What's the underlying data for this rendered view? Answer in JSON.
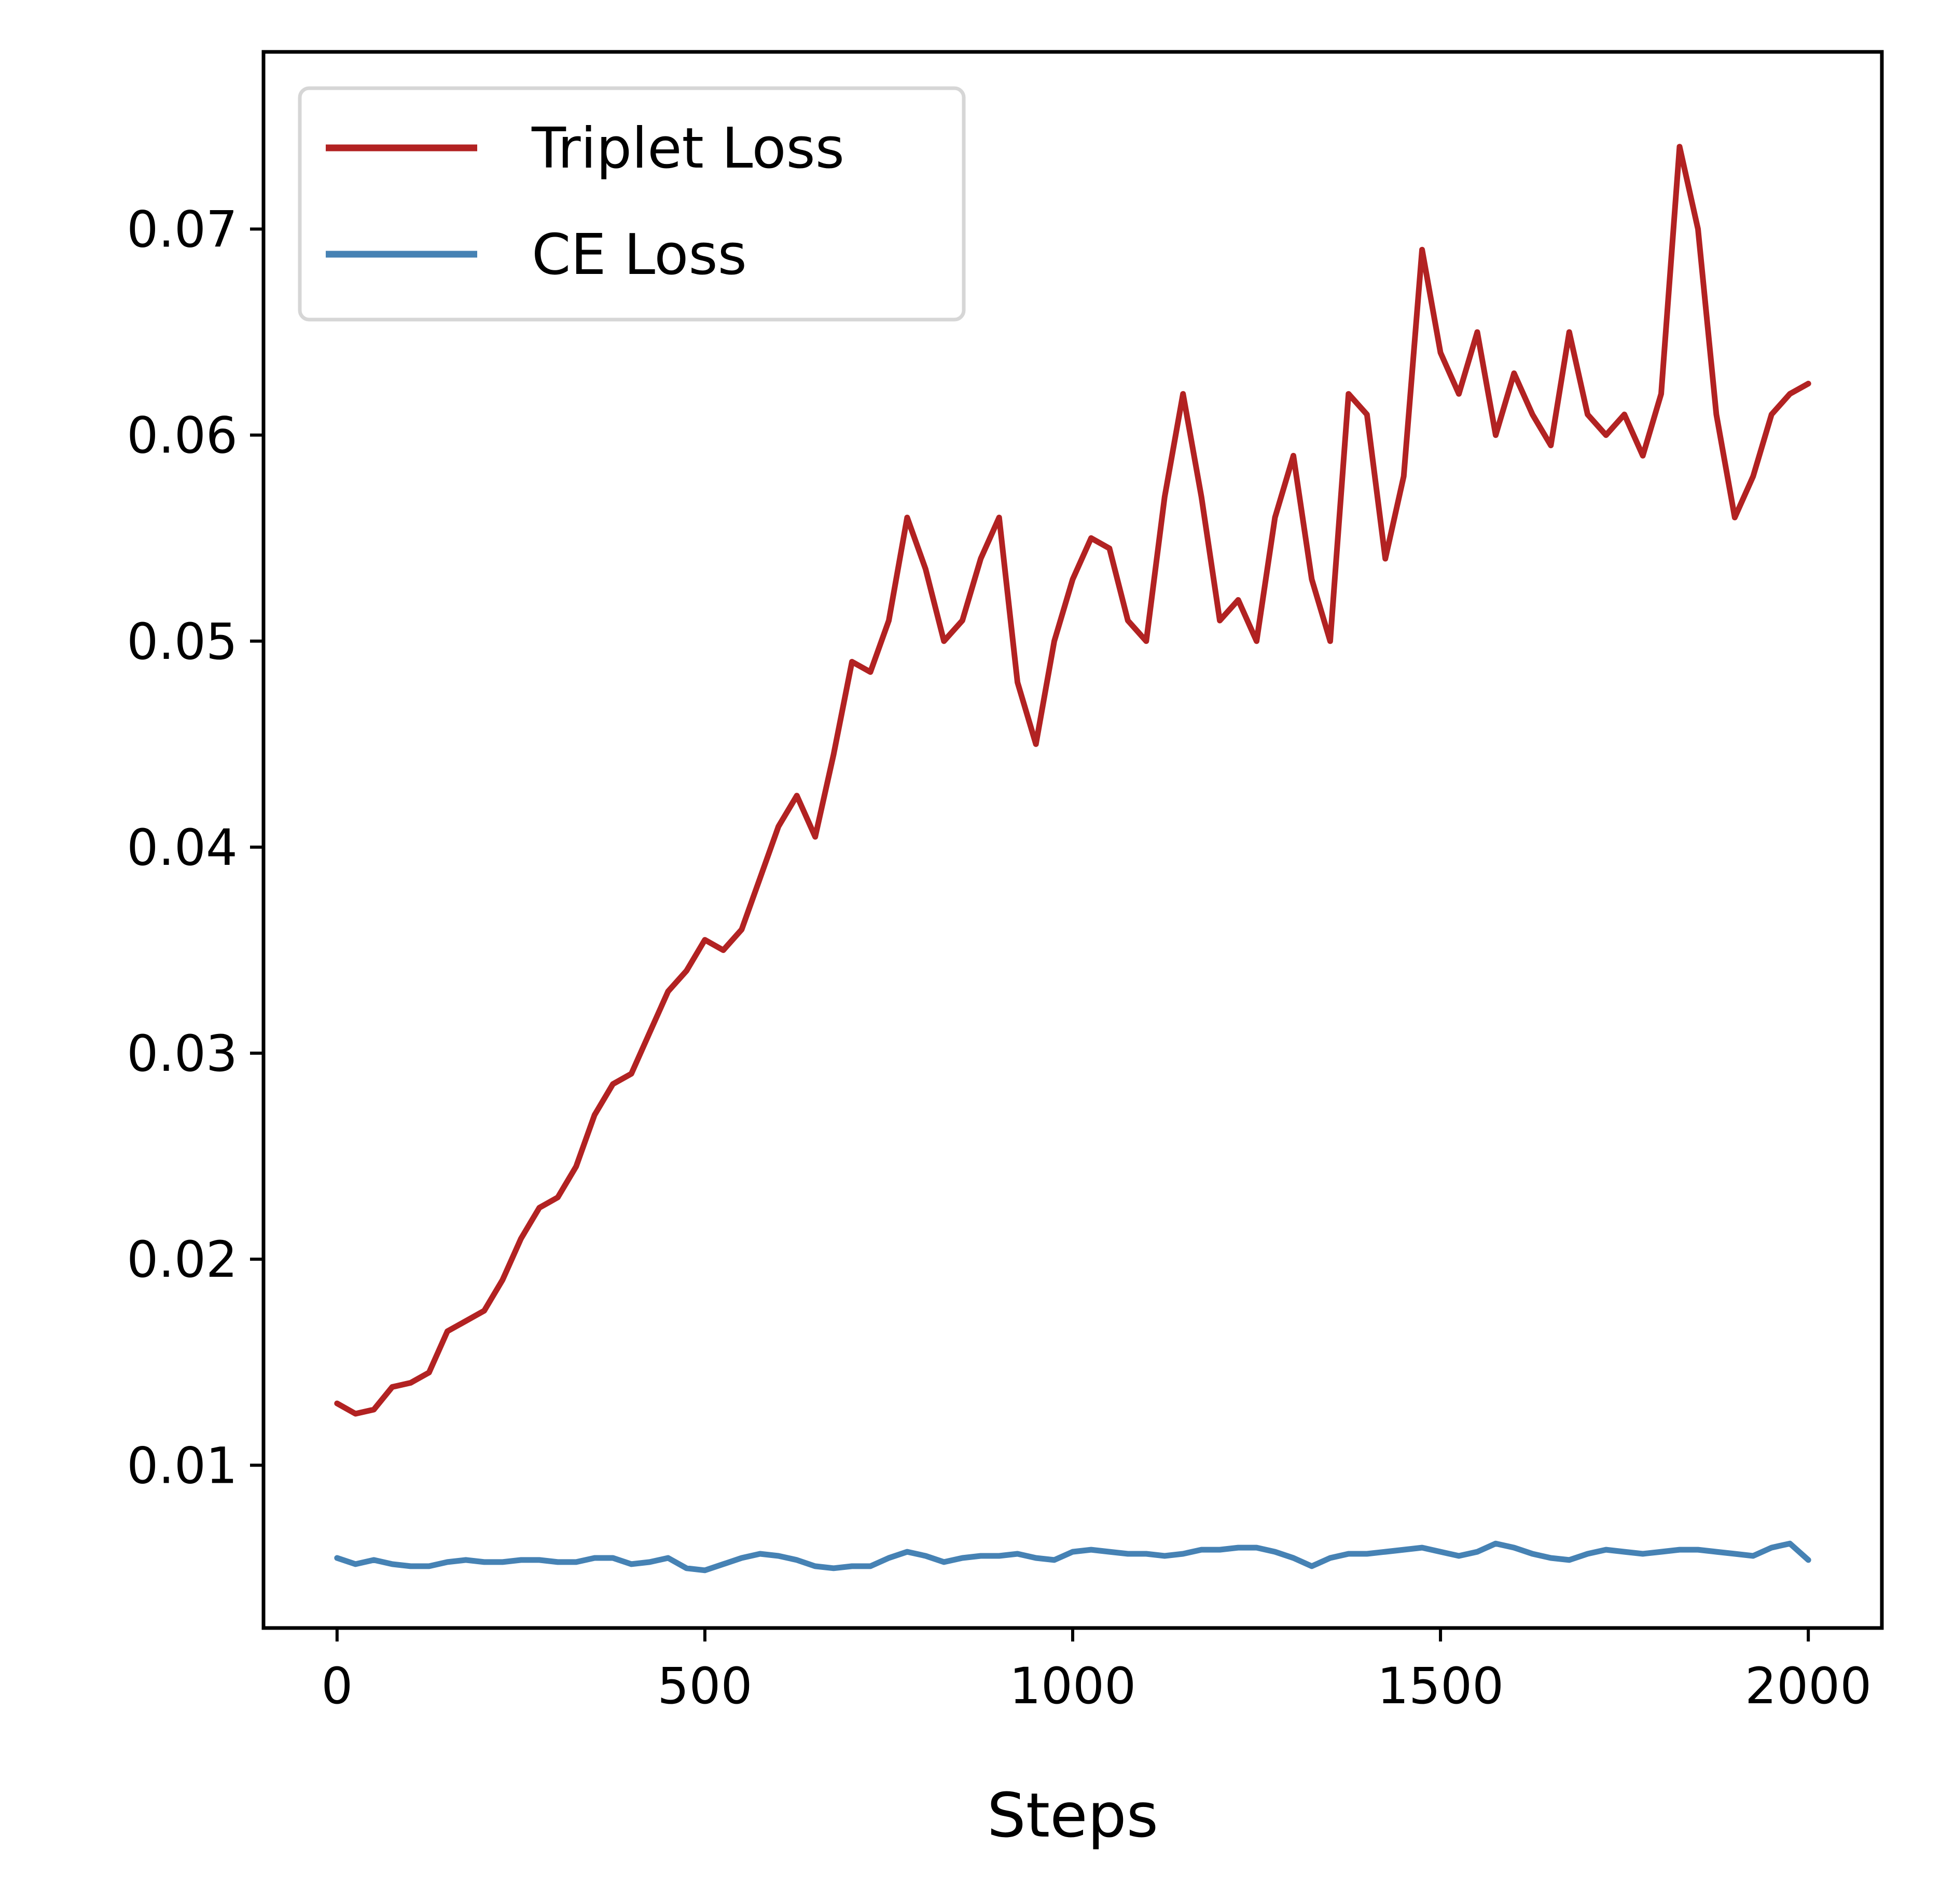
{
  "chart_data": {
    "type": "line",
    "title": "",
    "xlabel": "Steps",
    "ylabel": "",
    "xlim": [
      -100,
      2100
    ],
    "ylim": [
      0.0021,
      0.0786
    ],
    "xticks": [
      0,
      500,
      1000,
      1500,
      2000
    ],
    "xtick_labels": [
      "0",
      "500",
      "1000",
      "1500",
      "2000"
    ],
    "yticks": [
      0.01,
      0.02,
      0.03,
      0.04,
      0.05,
      0.06,
      0.07
    ],
    "ytick_labels": [
      "0.01",
      "0.02",
      "0.03",
      "0.04",
      "0.05",
      "0.06",
      "0.07"
    ],
    "grid": false,
    "legend": {
      "position": "top-left",
      "entries": [
        "Triplet Loss",
        "CE Loss"
      ]
    },
    "series": [
      {
        "name": "Triplet Loss",
        "color": "#b22222",
        "x": [
          0,
          25,
          50,
          75,
          100,
          125,
          150,
          175,
          200,
          225,
          250,
          275,
          300,
          325,
          350,
          375,
          400,
          425,
          450,
          475,
          500,
          525,
          550,
          575,
          600,
          625,
          650,
          675,
          700,
          725,
          750,
          775,
          800,
          825,
          850,
          875,
          900,
          925,
          950,
          975,
          1000,
          1025,
          1050,
          1075,
          1100,
          1125,
          1150,
          1175,
          1200,
          1225,
          1250,
          1275,
          1300,
          1325,
          1350,
          1375,
          1400,
          1425,
          1450,
          1475,
          1500,
          1525,
          1550,
          1575,
          1600,
          1625,
          1650,
          1675,
          1700,
          1725,
          1750,
          1775,
          1800,
          1825,
          1850,
          1875,
          1900,
          1925,
          1950,
          1975,
          2000
        ],
        "y": [
          0.013,
          0.0125,
          0.0127,
          0.0138,
          0.014,
          0.0145,
          0.0165,
          0.017,
          0.0175,
          0.019,
          0.021,
          0.0225,
          0.023,
          0.0245,
          0.027,
          0.0285,
          0.029,
          0.031,
          0.033,
          0.034,
          0.0355,
          0.035,
          0.036,
          0.0385,
          0.041,
          0.0425,
          0.0405,
          0.0445,
          0.049,
          0.0485,
          0.051,
          0.056,
          0.0535,
          0.05,
          0.051,
          0.054,
          0.056,
          0.048,
          0.045,
          0.05,
          0.053,
          0.055,
          0.0545,
          0.051,
          0.05,
          0.057,
          0.062,
          0.057,
          0.051,
          0.052,
          0.05,
          0.056,
          0.059,
          0.053,
          0.05,
          0.062,
          0.061,
          0.054,
          0.058,
          0.069,
          0.064,
          0.062,
          0.065,
          0.06,
          0.063,
          0.061,
          0.0595,
          0.065,
          0.061,
          0.06,
          0.061,
          0.059,
          0.062,
          0.074,
          0.07,
          0.061,
          0.056,
          0.058,
          0.061,
          0.062,
          0.0625
        ]
      },
      {
        "name": "CE Loss",
        "color": "#4682b4",
        "x": [
          0,
          25,
          50,
          75,
          100,
          125,
          150,
          175,
          200,
          225,
          250,
          275,
          300,
          325,
          350,
          375,
          400,
          425,
          450,
          475,
          500,
          525,
          550,
          575,
          600,
          625,
          650,
          675,
          700,
          725,
          750,
          775,
          800,
          825,
          850,
          875,
          900,
          925,
          950,
          975,
          1000,
          1025,
          1050,
          1075,
          1100,
          1125,
          1150,
          1175,
          1200,
          1225,
          1250,
          1275,
          1300,
          1325,
          1350,
          1375,
          1400,
          1425,
          1450,
          1475,
          1500,
          1525,
          1550,
          1575,
          1600,
          1625,
          1650,
          1675,
          1700,
          1725,
          1750,
          1775,
          1800,
          1825,
          1850,
          1875,
          1900,
          1925,
          1950,
          1975,
          2000
        ],
        "y": [
          0.0055,
          0.0052,
          0.0054,
          0.0052,
          0.0051,
          0.0051,
          0.0053,
          0.0054,
          0.0053,
          0.0053,
          0.0054,
          0.0054,
          0.0053,
          0.0053,
          0.0055,
          0.0055,
          0.0052,
          0.0053,
          0.0055,
          0.005,
          0.0049,
          0.0052,
          0.0055,
          0.0057,
          0.0056,
          0.0054,
          0.0051,
          0.005,
          0.0051,
          0.0051,
          0.0055,
          0.0058,
          0.0056,
          0.0053,
          0.0055,
          0.0056,
          0.0056,
          0.0057,
          0.0055,
          0.0054,
          0.0058,
          0.0059,
          0.0058,
          0.0057,
          0.0057,
          0.0056,
          0.0057,
          0.0059,
          0.0059,
          0.006,
          0.006,
          0.0058,
          0.0055,
          0.0051,
          0.0055,
          0.0057,
          0.0057,
          0.0058,
          0.0059,
          0.006,
          0.0058,
          0.0056,
          0.0058,
          0.0062,
          0.006,
          0.0057,
          0.0055,
          0.0054,
          0.0057,
          0.0059,
          0.0058,
          0.0057,
          0.0058,
          0.0059,
          0.0059,
          0.0058,
          0.0057,
          0.0056,
          0.006,
          0.0062,
          0.0054
        ]
      }
    ]
  }
}
